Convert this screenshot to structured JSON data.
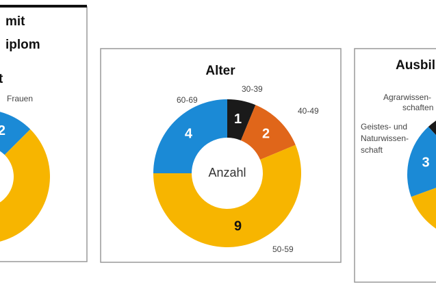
{
  "chart_data": [
    {
      "type": "donut",
      "title": [
        "mit",
        "iplom"
      ],
      "subtitle": "t",
      "categories": [
        [
          "Frauen"
        ],
        null
      ],
      "values": [
        2,
        14
      ],
      "colors": [
        "#1b8ad6",
        "#f7b500"
      ]
    },
    {
      "type": "donut",
      "title": [
        "Alter"
      ],
      "center_label": "Anzahl",
      "categories": [
        [
          "30-39"
        ],
        [
          "40-49"
        ],
        [
          "50-59"
        ],
        [
          "60-69"
        ]
      ],
      "values": [
        1,
        2,
        9,
        4
      ],
      "colors": [
        "#1a1a1a",
        "#e0661a",
        "#f7b500",
        "#1b8ad6"
      ]
    },
    {
      "type": "donut",
      "title": [
        "Ausbil"
      ],
      "categories": [
        [
          "Geistes- und",
          "Naturwissen-",
          "schaft"
        ],
        [
          "Agrarwissen-",
          "schaften"
        ],
        null
      ],
      "values": [
        3,
        1,
        12
      ],
      "colors": [
        "#1b8ad6",
        "#1a1a1a",
        "#f7b500"
      ]
    }
  ]
}
